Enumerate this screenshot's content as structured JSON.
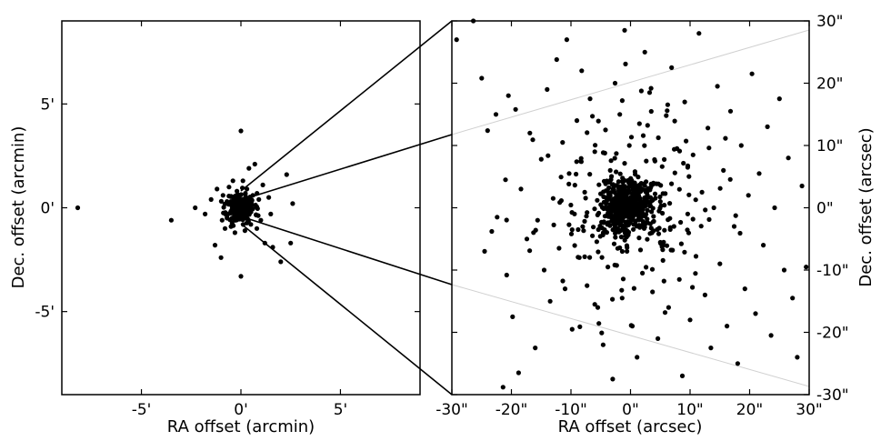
{
  "chart_data": [
    {
      "type": "scatter",
      "xlabel": "RA offset (arcmin)",
      "ylabel": "Dec. offset (arcmin)",
      "xlim": [
        -9,
        9
      ],
      "ylim": [
        -9,
        9
      ],
      "xticks": [
        {
          "v": -5,
          "label": "-5'"
        },
        {
          "v": 0,
          "label": "0'"
        },
        {
          "v": 5,
          "label": "5'"
        }
      ],
      "yticks": [
        {
          "v": 5,
          "label": "5'"
        },
        {
          "v": 0,
          "label": "0'"
        },
        {
          "v": -5,
          "label": "-5'"
        }
      ],
      "points": [
        [
          -8.2,
          0.0
        ],
        [
          -3.5,
          -0.6
        ],
        [
          -2.3,
          0.0
        ],
        [
          -1.8,
          -0.3
        ],
        [
          -1.5,
          0.4
        ],
        [
          -1.3,
          -1.8
        ],
        [
          -1.2,
          0.9
        ],
        [
          -1.0,
          -2.4
        ],
        [
          -0.9,
          0.6
        ],
        [
          -0.8,
          -1.0
        ],
        [
          -0.7,
          0.3
        ],
        [
          -0.7,
          -0.5
        ],
        [
          -0.6,
          1.0
        ],
        [
          -0.5,
          -0.9
        ],
        [
          -0.4,
          1.3
        ],
        [
          -0.3,
          -1.2
        ],
        [
          -0.2,
          0.8
        ],
        [
          0.0,
          3.7
        ],
        [
          0.0,
          -3.3
        ],
        [
          0.1,
          1.3
        ],
        [
          0.2,
          -1.1
        ],
        [
          0.3,
          0.9
        ],
        [
          0.4,
          1.9
        ],
        [
          0.5,
          -0.8
        ],
        [
          0.6,
          0.6
        ],
        [
          0.7,
          2.1
        ],
        [
          0.8,
          -1.0
        ],
        [
          0.9,
          0.4
        ],
        [
          1.0,
          -0.6
        ],
        [
          1.1,
          1.1
        ],
        [
          1.2,
          -1.7
        ],
        [
          1.4,
          0.5
        ],
        [
          1.5,
          -0.3
        ],
        [
          1.6,
          -1.9
        ],
        [
          2.0,
          -2.6
        ],
        [
          2.3,
          1.6
        ],
        [
          2.5,
          -1.7
        ],
        [
          2.6,
          0.2
        ]
      ],
      "core": {
        "x": 0.0,
        "y": 0.0,
        "sigma": 0.35,
        "count": 220,
        "seed": 11
      }
    },
    {
      "type": "scatter",
      "xlabel": "RA offset (arcsec)",
      "ylabel": "Dec. offset (arcsec)",
      "xlim": [
        -30,
        30
      ],
      "ylim": [
        -30,
        30
      ],
      "xticks": [
        {
          "v": -30,
          "label": "-30\""
        },
        {
          "v": -20,
          "label": "-20\""
        },
        {
          "v": -10,
          "label": "-10\""
        },
        {
          "v": 0,
          "label": "0\""
        },
        {
          "v": 10,
          "label": "10\""
        },
        {
          "v": 20,
          "label": "20\""
        },
        {
          "v": 30,
          "label": "30\""
        }
      ],
      "yticks": [
        {
          "v": 30,
          "label": "30\""
        },
        {
          "v": 20,
          "label": "20\""
        },
        {
          "v": 10,
          "label": "10\""
        },
        {
          "v": 0,
          "label": "0\""
        },
        {
          "v": -10,
          "label": "-10\""
        },
        {
          "v": -20,
          "label": "-20\""
        },
        {
          "v": -30,
          "label": "-30\""
        }
      ],
      "points": [
        [
          -29.2,
          27.0
        ],
        [
          -26.4,
          30.0
        ],
        [
          -25.0,
          20.8
        ],
        [
          -24.5,
          -7.0
        ],
        [
          -24.0,
          12.4
        ],
        [
          -23.3,
          -3.8
        ],
        [
          -22.6,
          15.0
        ],
        [
          -22.4,
          -1.5
        ],
        [
          -21.4,
          -28.8
        ],
        [
          -21.0,
          4.5
        ],
        [
          -20.8,
          -10.8
        ],
        [
          -20.5,
          18.0
        ],
        [
          -19.8,
          -17.5
        ],
        [
          -19.3,
          15.8
        ],
        [
          -18.8,
          -26.5
        ],
        [
          -18.4,
          3.0
        ],
        [
          -17.4,
          -5.0
        ],
        [
          -16.9,
          12.0
        ],
        [
          -16.0,
          -22.5
        ],
        [
          -15.6,
          -2.0
        ],
        [
          -15.0,
          7.8
        ],
        [
          -14.5,
          -10.0
        ],
        [
          -14.0,
          19.0
        ],
        [
          -13.5,
          -15.0
        ],
        [
          -13.0,
          1.5
        ],
        [
          -12.4,
          23.8
        ],
        [
          -12.0,
          -6.5
        ],
        [
          -11.4,
          10.5
        ],
        [
          -11.0,
          -13.0
        ],
        [
          -10.7,
          27.0
        ],
        [
          -10.3,
          5.5
        ],
        [
          -9.8,
          -19.5
        ],
        [
          -9.4,
          -1.0
        ],
        [
          -9.0,
          14.0
        ],
        [
          -8.6,
          -8.0
        ],
        [
          -8.2,
          22.0
        ],
        [
          -7.7,
          2.5
        ],
        [
          -7.3,
          -12.5
        ],
        [
          -6.8,
          17.5
        ],
        [
          -6.4,
          -4.5
        ],
        [
          -6.0,
          9.0
        ],
        [
          -5.5,
          -16.0
        ],
        [
          -5.0,
          0.5
        ],
        [
          -4.6,
          -22.0
        ],
        [
          -4.2,
          12.5
        ],
        [
          -3.8,
          -9.5
        ],
        [
          -3.4,
          6.0
        ],
        [
          -3.0,
          -27.5
        ],
        [
          -2.6,
          20.0
        ],
        [
          -2.2,
          -3.5
        ],
        [
          -1.8,
          15.0
        ],
        [
          -1.4,
          -14.5
        ],
        [
          -1.0,
          28.5
        ],
        [
          -0.6,
          -7.0
        ],
        [
          -0.2,
          10.0
        ],
        [
          0.3,
          -19.0
        ],
        [
          0.7,
          4.0
        ],
        [
          1.1,
          -24.0
        ],
        [
          1.5,
          13.5
        ],
        [
          2.0,
          -10.5
        ],
        [
          2.4,
          25.0
        ],
        [
          2.8,
          -1.8
        ],
        [
          3.2,
          18.5
        ],
        [
          3.7,
          -13.5
        ],
        [
          4.1,
          7.5
        ],
        [
          4.6,
          -21.0
        ],
        [
          5.0,
          1.0
        ],
        [
          5.5,
          -6.0
        ],
        [
          6.0,
          14.8
        ],
        [
          6.4,
          -16.0
        ],
        [
          6.9,
          22.5
        ],
        [
          7.3,
          -3.0
        ],
        [
          7.8,
          9.5
        ],
        [
          8.2,
          -11.5
        ],
        [
          8.7,
          -27.0
        ],
        [
          9.1,
          17.0
        ],
        [
          9.6,
          -1.0
        ],
        [
          10.0,
          -18.0
        ],
        [
          10.5,
          8.5
        ],
        [
          11.0,
          -7.8
        ],
        [
          11.5,
          28.0
        ],
        [
          12.0,
          2.5
        ],
        [
          12.5,
          -14.0
        ],
        [
          13.0,
          12.8
        ],
        [
          13.5,
          -22.5
        ],
        [
          14.0,
          0.0
        ],
        [
          14.6,
          19.5
        ],
        [
          15.0,
          -9.0
        ],
        [
          15.6,
          6.0
        ],
        [
          16.2,
          -19.0
        ],
        [
          16.8,
          15.5
        ],
        [
          17.4,
          -3.0
        ],
        [
          18.0,
          -25.0
        ],
        [
          18.6,
          10.0
        ],
        [
          19.2,
          -13.0
        ],
        [
          19.8,
          2.0
        ],
        [
          20.4,
          21.5
        ],
        [
          21.0,
          -17.0
        ],
        [
          21.6,
          5.5
        ],
        [
          22.3,
          -6.0
        ],
        [
          23.0,
          13.0
        ],
        [
          23.6,
          -20.5
        ],
        [
          24.2,
          0.0
        ],
        [
          25.0,
          17.5
        ],
        [
          25.8,
          -10.0
        ],
        [
          26.5,
          8.0
        ],
        [
          27.2,
          -14.5
        ],
        [
          28.0,
          -24.0
        ],
        [
          28.8,
          3.5
        ],
        [
          29.5,
          -9.5
        ]
      ],
      "core": {
        "x": -0.5,
        "y": 0.0,
        "sigma": 2.3,
        "count": 440,
        "seed": 7
      },
      "halo": {
        "x": -0.5,
        "y": 0.0,
        "sigma": 7.5,
        "count": 170,
        "seed": 23
      }
    }
  ]
}
